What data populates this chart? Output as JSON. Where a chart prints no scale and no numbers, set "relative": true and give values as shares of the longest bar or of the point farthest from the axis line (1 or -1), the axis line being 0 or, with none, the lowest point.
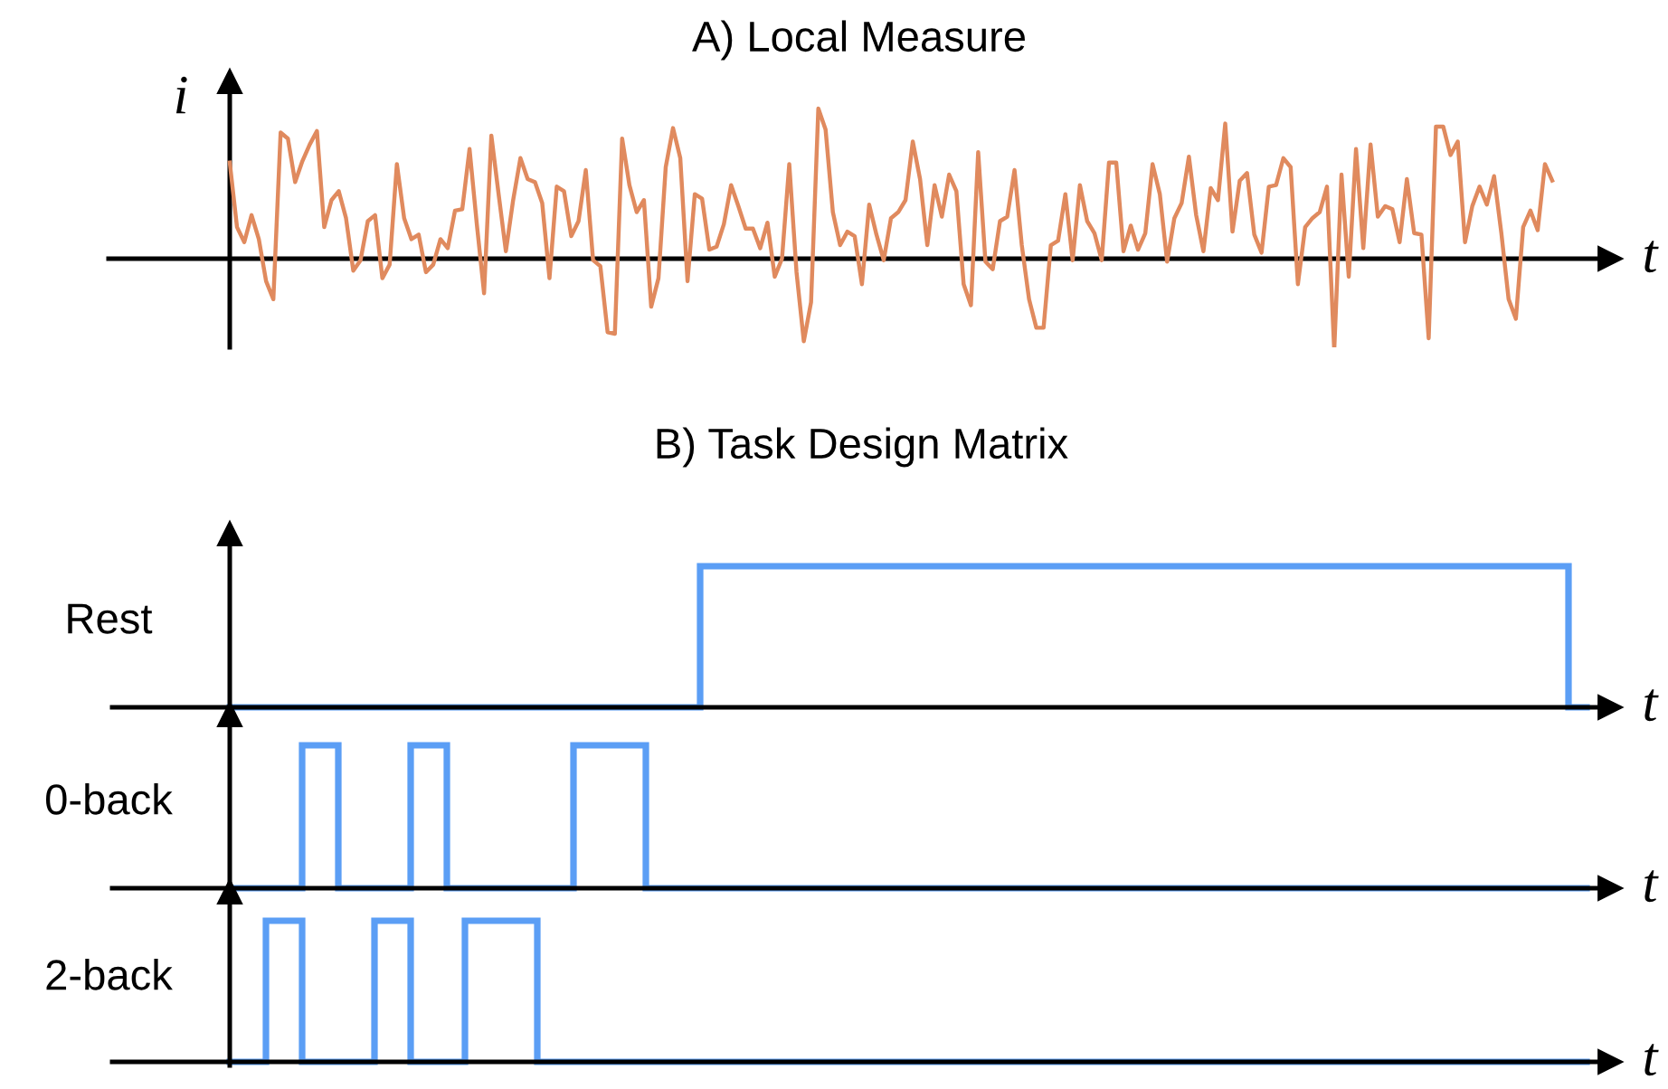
{
  "chart_data": [
    {
      "type": "line",
      "title": "A) Local Measure",
      "xlabel": "t",
      "ylabel": "i",
      "relative": true,
      "categories": [
        null,
        null,
        null,
        null,
        null,
        null,
        null,
        null,
        null,
        null,
        null,
        null,
        null,
        null,
        null,
        null,
        null,
        null,
        null,
        null,
        null,
        null,
        null,
        null,
        null,
        null,
        null,
        null,
        null,
        null,
        null,
        null,
        null,
        null,
        null,
        null,
        null,
        null,
        null,
        null,
        null,
        null,
        null,
        null,
        null,
        null,
        null,
        null,
        null,
        null,
        null,
        null,
        null,
        null,
        null,
        null,
        null,
        null,
        null,
        null,
        null,
        null,
        null,
        null,
        null,
        null,
        null,
        null,
        null,
        null,
        null,
        null,
        null,
        null,
        null,
        null,
        null,
        null,
        null,
        null,
        null,
        null,
        null,
        null,
        null,
        null,
        null,
        null,
        null,
        null,
        null,
        null,
        null,
        null,
        null,
        null,
        null,
        null,
        null,
        null,
        null,
        null,
        null,
        null,
        null,
        null,
        null,
        null,
        null,
        null,
        null,
        null,
        null,
        null,
        null,
        null,
        null,
        null,
        null,
        null,
        null,
        null,
        null,
        null,
        null,
        null,
        null,
        null,
        null,
        null,
        null,
        null,
        null,
        null,
        null,
        null,
        null,
        null,
        null,
        null,
        null,
        null,
        null,
        null,
        null,
        null,
        null,
        null,
        null,
        null,
        null,
        null,
        null,
        null,
        null,
        null,
        null,
        null,
        null,
        null,
        null,
        null,
        null,
        null,
        null,
        null,
        null,
        null,
        null,
        null,
        null,
        null,
        null,
        null,
        null,
        null,
        null,
        null,
        null,
        null,
        null,
        null,
        null
      ],
      "series": [
        {
          "color": "#e08a5e",
          "values": [
            0.64,
            0.21,
            0.11,
            0.29,
            0.13,
            -0.15,
            -0.27,
            0.84,
            0.8,
            0.51,
            0.65,
            0.76,
            0.85,
            0.21,
            0.39,
            0.45,
            0.27,
            -0.08,
            -0.01,
            0.25,
            0.29,
            -0.13,
            -0.04,
            0.63,
            0.27,
            0.13,
            0.16,
            -0.09,
            -0.04,
            0.13,
            0.07,
            0.32,
            0.33,
            0.73,
            0.23,
            -0.23,
            0.82,
            0.43,
            0.05,
            0.39,
            0.67,
            0.53,
            0.51,
            0.37,
            -0.13,
            0.48,
            0.45,
            0.15,
            0.25,
            0.59,
            -0.01,
            -0.05,
            -0.49,
            -0.5,
            0.8,
            0.49,
            0.31,
            0.39,
            -0.32,
            -0.13,
            0.61,
            0.87,
            0.67,
            -0.15,
            0.43,
            0.4,
            0.06,
            0.08,
            0.23,
            0.49,
            0.35,
            0.2,
            0.2,
            0.07,
            0.24,
            -0.12,
            0.0,
            0.63,
            -0.09,
            -0.55,
            -0.29,
            1.0,
            0.86,
            0.31,
            0.09,
            0.18,
            0.15,
            -0.17,
            0.36,
            0.16,
            -0.01,
            0.27,
            0.31,
            0.39,
            0.78,
            0.53,
            0.09,
            0.49,
            0.28,
            0.56,
            0.45,
            -0.17,
            -0.31,
            0.71,
            -0.02,
            -0.07,
            0.25,
            0.28,
            0.59,
            0.09,
            -0.27,
            -0.46,
            -0.46,
            0.09,
            0.12,
            0.43,
            -0.01,
            0.49,
            0.25,
            0.17,
            -0.01,
            0.64,
            0.64,
            0.05,
            0.22,
            0.06,
            0.17,
            0.63,
            0.43,
            -0.02,
            0.27,
            0.37,
            0.68,
            0.29,
            0.05,
            0.47,
            0.39,
            0.9,
            0.18,
            0.52,
            0.57,
            0.16,
            0.04,
            0.48,
            0.49,
            0.67,
            0.61,
            -0.17,
            0.21,
            0.27,
            0.31,
            0.48,
            -0.61,
            0.56,
            -0.12,
            0.73,
            0.07,
            0.76,
            0.28,
            0.35,
            0.33,
            0.11,
            0.53,
            0.17,
            0.16,
            -0.53,
            0.88,
            0.88,
            0.69,
            0.78,
            0.11,
            0.35,
            0.48,
            0.36,
            0.55,
            0.17,
            -0.27,
            -0.4,
            0.21,
            0.32,
            0.19,
            0.63,
            0.52
          ]
        }
      ]
    },
    {
      "type": "step",
      "title": "B) Task Design Matrix",
      "xlabel": "t",
      "ylabel": "Rest",
      "relative": true,
      "categories": [
        null,
        null,
        null,
        null,
        null,
        null,
        null,
        null,
        null,
        null,
        null,
        null,
        null,
        null,
        null,
        null,
        null,
        null,
        null,
        null,
        null,
        null,
        null,
        null,
        null,
        null,
        null,
        null,
        null,
        null,
        null,
        null,
        null,
        null,
        null,
        null,
        null,
        null,
        null,
        null,
        null,
        null,
        null,
        null,
        null,
        null,
        null,
        null,
        null,
        null,
        null,
        null,
        null,
        null,
        null,
        null,
        null,
        null,
        null,
        null,
        null,
        null,
        null,
        null,
        null,
        null,
        null,
        null,
        null,
        null,
        null,
        null,
        null,
        null,
        null,
        null
      ],
      "series": [
        {
          "color": "#5b9ef5",
          "values": [
            0,
            0,
            0,
            0,
            0,
            0,
            0,
            0,
            0,
            0,
            0,
            0,
            0,
            0,
            0,
            0,
            0,
            0,
            0,
            0,
            0,
            0,
            0,
            0,
            0,
            0,
            1,
            1,
            1,
            1,
            1,
            1,
            1,
            1,
            1,
            1,
            1,
            1,
            1,
            1,
            1,
            1,
            1,
            1,
            1,
            1,
            1,
            1,
            1,
            1,
            1,
            1,
            1,
            1,
            1,
            1,
            1,
            1,
            1,
            1,
            1,
            1,
            1,
            1,
            1,
            1,
            1,
            1,
            1,
            1,
            1,
            1,
            1,
            1,
            0,
            0
          ]
        }
      ]
    },
    {
      "type": "step",
      "xlabel": "t",
      "ylabel": "0-back",
      "relative": true,
      "categories": [
        null,
        null,
        null,
        null,
        null,
        null,
        null,
        null,
        null,
        null,
        null,
        null,
        null,
        null,
        null,
        null,
        null,
        null,
        null,
        null,
        null,
        null,
        null,
        null,
        null,
        null,
        null,
        null,
        null,
        null,
        null,
        null,
        null,
        null,
        null,
        null,
        null,
        null,
        null,
        null,
        null,
        null,
        null,
        null,
        null,
        null,
        null,
        null,
        null,
        null,
        null,
        null,
        null,
        null,
        null,
        null,
        null,
        null,
        null,
        null,
        null,
        null,
        null,
        null,
        null,
        null,
        null,
        null,
        null,
        null,
        null,
        null,
        null,
        null,
        null,
        null
      ],
      "series": [
        {
          "color": "#5b9ef5",
          "values": [
            0,
            0,
            0,
            0,
            1,
            1,
            0,
            0,
            0,
            0,
            1,
            1,
            0,
            0,
            0,
            0,
            0,
            0,
            0,
            1,
            1,
            1,
            1,
            0,
            0,
            0,
            0,
            0,
            0,
            0,
            0,
            0,
            0,
            0,
            0,
            0,
            0,
            0,
            0,
            0,
            0,
            0,
            0,
            0,
            0,
            0,
            0,
            0,
            0,
            0,
            0,
            0,
            0,
            0,
            0,
            0,
            0,
            0,
            0,
            0,
            0,
            0,
            0,
            0,
            0,
            0,
            0,
            0,
            0,
            0,
            0,
            0,
            0,
            0,
            0,
            0
          ]
        }
      ]
    },
    {
      "type": "step",
      "xlabel": "t",
      "ylabel": "2-back",
      "relative": true,
      "categories": [
        null,
        null,
        null,
        null,
        null,
        null,
        null,
        null,
        null,
        null,
        null,
        null,
        null,
        null,
        null,
        null,
        null,
        null,
        null,
        null,
        null,
        null,
        null,
        null,
        null,
        null,
        null,
        null,
        null,
        null,
        null,
        null,
        null,
        null,
        null,
        null,
        null,
        null,
        null,
        null,
        null,
        null,
        null,
        null,
        null,
        null,
        null,
        null,
        null,
        null,
        null,
        null,
        null,
        null,
        null,
        null,
        null,
        null,
        null,
        null,
        null,
        null,
        null,
        null,
        null,
        null,
        null,
        null,
        null,
        null,
        null,
        null,
        null,
        null,
        null,
        null
      ],
      "series": [
        {
          "color": "#5b9ef5",
          "values": [
            0,
            0,
            1,
            1,
            0,
            0,
            0,
            0,
            1,
            1,
            0,
            0,
            0,
            1,
            1,
            1,
            1,
            0,
            0,
            0,
            0,
            0,
            0,
            0,
            0,
            0,
            0,
            0,
            0,
            0,
            0,
            0,
            0,
            0,
            0,
            0,
            0,
            0,
            0,
            0,
            0,
            0,
            0,
            0,
            0,
            0,
            0,
            0,
            0,
            0,
            0,
            0,
            0,
            0,
            0,
            0,
            0,
            0,
            0,
            0,
            0,
            0,
            0,
            0,
            0,
            0,
            0,
            0,
            0,
            0,
            0,
            0,
            0,
            0,
            0,
            0
          ]
        }
      ]
    }
  ]
}
